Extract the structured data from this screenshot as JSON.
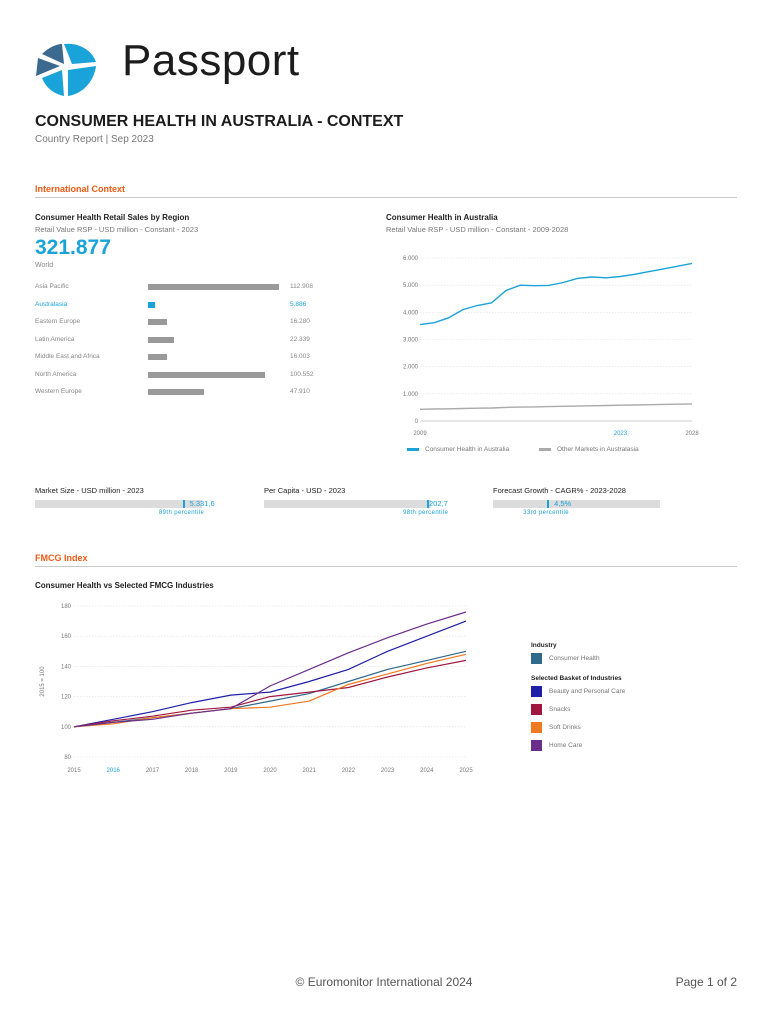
{
  "header": {
    "logo_text": "Passport",
    "title": "CONSUMER HEALTH IN AUSTRALIA - CONTEXT",
    "subtitle": "Country Report | Sep 2023"
  },
  "international_context": {
    "section_title": "International Context",
    "regional_sales": {
      "title": "Consumer Health Retail Sales by Region",
      "subtitle": "Retail Value RSP - USD million - Constant - 2023",
      "world_value": "321.877",
      "world_label": "World",
      "highlight_color": "#1aa3d9",
      "bar_color": "#999999",
      "regions": [
        {
          "name": "Asia Pacific",
          "value": "112.908",
          "number": 112.908,
          "highlight": false
        },
        {
          "name": "Australasia",
          "value": "5.886",
          "number": 5.886,
          "highlight": true
        },
        {
          "name": "Eastern Europe",
          "value": "16.280",
          "number": 16.28,
          "highlight": false
        },
        {
          "name": "Latin America",
          "value": "22.339",
          "number": 22.339,
          "highlight": false
        },
        {
          "name": "Middle East and Africa",
          "value": "16.003",
          "number": 16.003,
          "highlight": false
        },
        {
          "name": "North America",
          "value": "100.552",
          "number": 100.552,
          "highlight": false
        },
        {
          "name": "Western Europe",
          "value": "47.910",
          "number": 47.91,
          "highlight": false
        }
      ]
    },
    "trend_chart": {
      "title": "Consumer Health in Australia",
      "subtitle": "Retail Value RSP - USD million - Constant - 2009-2028"
    },
    "metrics": [
      {
        "title": "Market Size - USD million - 2023",
        "value": "5.331,6",
        "percentile": "89th percentile",
        "fraction": 0.89
      },
      {
        "title": "Per Capita - USD - 2023",
        "value": "202,7",
        "percentile": "98th percentile",
        "fraction": 0.98
      },
      {
        "title": "Forecast Growth - CAGR% - 2023-2028",
        "value": "4,5%",
        "percentile": "33rd percentile",
        "fraction": 0.33
      }
    ]
  },
  "fmcg": {
    "section_title": "FMCG Index",
    "chart_title": "Consumer Health vs Selected FMCG Industries",
    "legend_industry_title": "Industry",
    "legend_basket_title": "Selected Basket of Industries"
  },
  "footer": {
    "copyright": "© Euromonitor International 2024",
    "page": "Page 1 of 2"
  },
  "chart_data": [
    {
      "type": "bar",
      "title": "Consumer Health Retail Sales by Region",
      "categories": [
        "Asia Pacific",
        "Australasia",
        "Eastern Europe",
        "Latin America",
        "Middle East and Africa",
        "North America",
        "Western Europe"
      ],
      "values": [
        112.908,
        5.886,
        16.28,
        22.339,
        16.003,
        100.552,
        47.91
      ]
    },
    {
      "type": "line",
      "title": "Consumer Health in Australia",
      "x": [
        2009,
        2010,
        2011,
        2012,
        2013,
        2014,
        2015,
        2016,
        2017,
        2018,
        2019,
        2020,
        2021,
        2022,
        2023,
        2024,
        2025,
        2026,
        2027,
        2028
      ],
      "ylim": [
        0,
        6000
      ],
      "yticks": [
        "0",
        "1.000",
        "2.000",
        "3.000",
        "4.000",
        "5.000",
        "6.000"
      ],
      "xticks": [
        "2009",
        "2023",
        "2028"
      ],
      "highlight_x": "2023",
      "series": [
        {
          "name": "Consumer Health in Australia",
          "color": "#1aa3d9",
          "values": [
            3550,
            3620,
            3800,
            4100,
            4250,
            4350,
            4800,
            5000,
            4980,
            4990,
            5100,
            5250,
            5300,
            5270,
            5320,
            5400,
            5500,
            5600,
            5700,
            5800
          ]
        },
        {
          "name": "Other Markets in Australasia",
          "color": "#aaaaaa",
          "values": [
            430,
            440,
            450,
            460,
            470,
            480,
            500,
            510,
            520,
            530,
            540,
            550,
            560,
            570,
            580,
            590,
            600,
            610,
            620,
            630
          ]
        }
      ]
    },
    {
      "type": "line",
      "title": "Consumer Health vs Selected FMCG Industries",
      "ylabel": "2015 = 100",
      "ylim": [
        80,
        180
      ],
      "yticks": [
        "80",
        "100",
        "120",
        "140",
        "160",
        "180"
      ],
      "x": [
        2015,
        2016,
        2017,
        2018,
        2019,
        2020,
        2021,
        2022,
        2023,
        2024,
        2025
      ],
      "xticks": [
        "2015",
        "2016",
        "2017",
        "2018",
        "2019",
        "2020",
        "2021",
        "2022",
        "2023",
        "2024",
        "2025"
      ],
      "highlight_x": "2016",
      "series": [
        {
          "name": "Consumer Health",
          "color": "#2f6a8a",
          "values": [
            100,
            103,
            106,
            109,
            112,
            117,
            122,
            130,
            138,
            144,
            150
          ]
        },
        {
          "name": "Beauty and Personal Care",
          "color": "#1f1fa8",
          "values": [
            100,
            105,
            110,
            116,
            121,
            123,
            130,
            138,
            150,
            160,
            170
          ]
        },
        {
          "name": "Snacks",
          "color": "#a01840",
          "values": [
            100,
            104,
            107,
            111,
            113,
            120,
            123,
            126,
            133,
            139,
            144
          ]
        },
        {
          "name": "Soft Drinks",
          "color": "#f07820",
          "values": [
            100,
            102,
            106,
            109,
            112,
            113,
            117,
            128,
            135,
            142,
            148
          ]
        },
        {
          "name": "Home Care",
          "color": "#6a2d8a",
          "values": [
            100,
            103,
            105,
            109,
            112,
            127,
            138,
            149,
            159,
            168,
            176
          ]
        }
      ]
    }
  ]
}
